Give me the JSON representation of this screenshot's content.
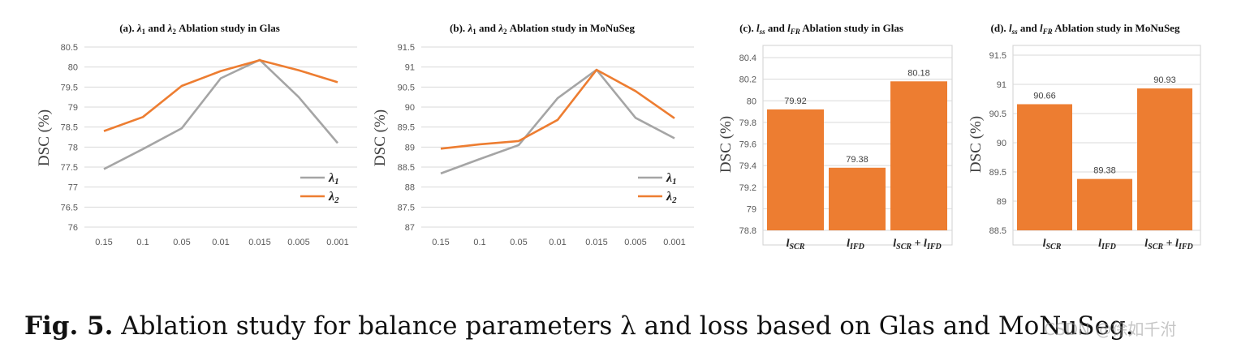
{
  "colors": {
    "lambda1": "#a5a5a5",
    "lambda2": "#ed7d31",
    "bar": "#ed7d31",
    "grid": "#d9d9d9"
  },
  "chart_data": [
    {
      "type": "line",
      "title": "(a).  λ₁ and λ₂ Ablation study in Glas",
      "ylabel": "DSC (%)",
      "categories": [
        "0.15",
        "0.1",
        "0.05",
        "0.01",
        "0.015",
        "0.005",
        "0.001"
      ],
      "yticks": [
        "76",
        "76.5",
        "77",
        "77.5",
        "78",
        "78.5",
        "79",
        "79.5",
        "80",
        "80.5"
      ],
      "ylim": [
        76,
        80.5
      ],
      "series": [
        {
          "name": "λ₁",
          "values": [
            77.45,
            77.95,
            78.47,
            79.72,
            80.18,
            79.25,
            78.1
          ]
        },
        {
          "name": "λ₂",
          "values": [
            78.4,
            78.75,
            79.53,
            79.9,
            80.17,
            79.92,
            79.62
          ]
        }
      ]
    },
    {
      "type": "line",
      "title": "(b). λ₁ and λ₂ Ablation study in MoNuSeg",
      "ylabel": "DSC (%)",
      "categories": [
        "0.15",
        "0.1",
        "0.05",
        "0.01",
        "0.015",
        "0.005",
        "0.001"
      ],
      "yticks": [
        "87",
        "87.5",
        "88",
        "88.5",
        "89",
        "89.5",
        "90",
        "90.5",
        "91",
        "91.5"
      ],
      "ylim": [
        87,
        91.5
      ],
      "series": [
        {
          "name": "λ₁",
          "values": [
            88.34,
            88.7,
            89.05,
            90.22,
            90.93,
            89.73,
            89.22
          ]
        },
        {
          "name": "λ₂",
          "values": [
            88.96,
            89.07,
            89.15,
            89.68,
            90.93,
            90.4,
            89.72
          ]
        }
      ]
    },
    {
      "type": "bar",
      "title": "(c). l_ss and l_FR Ablation study in Glas",
      "ylabel": "DSC (%)",
      "categories": [
        "l_SCR",
        "l_IFD",
        "l_SCR + l_IFD"
      ],
      "values": [
        79.92,
        79.38,
        80.18
      ],
      "data_labels": [
        "79.92",
        "79.38",
        "80.18"
      ],
      "yticks": [
        "78.8",
        "79",
        "79.2",
        "79.4",
        "79.6",
        "79.8",
        "80",
        "80.2",
        "80.4"
      ],
      "ylim": [
        78.8,
        80.4
      ]
    },
    {
      "type": "bar",
      "title": "(d). l_ss and l_FR Ablation study in MoNuSeg",
      "ylabel": "DSC (%)",
      "categories": [
        "l_SCR",
        "l_IFD",
        "l_SCR + l_IFD"
      ],
      "values": [
        90.66,
        89.38,
        90.93
      ],
      "data_labels": [
        "90.66",
        "89.38",
        "90.93"
      ],
      "yticks": [
        "88.5",
        "89",
        "89.5",
        "90",
        "90.5",
        "91",
        "91.5"
      ],
      "ylim": [
        88.5,
        91.5
      ]
    }
  ],
  "caption": {
    "label": "Fig. 5.",
    "text": "Ablation study for balance parameters λ and loss based on Glas and MoNuSeg."
  },
  "watermark": "CSDN @徐如千泭"
}
